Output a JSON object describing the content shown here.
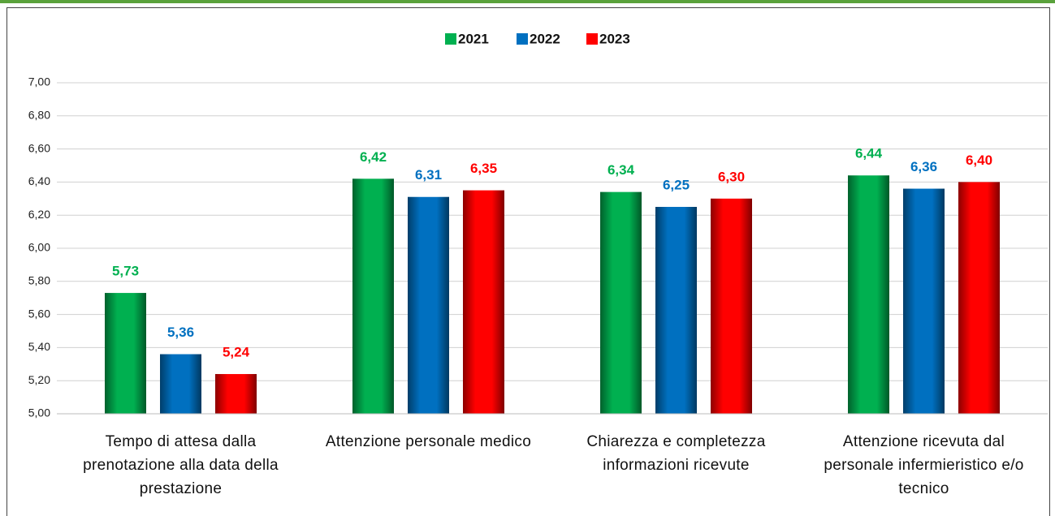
{
  "chart_data": {
    "type": "bar",
    "categories": [
      "Tempo di attesa dalla prenotazione alla data della prestazione",
      "Attenzione personale medico",
      "Chiarezza e completezza informazioni ricevute",
      "Attenzione ricevuta dal personale infermieristico e/o tecnico"
    ],
    "series": [
      {
        "name": "2021",
        "color": "#00b050",
        "values": [
          5.73,
          6.42,
          6.34,
          6.44
        ],
        "value_labels": [
          "5,73",
          "6,42",
          "6,34",
          "6,44"
        ]
      },
      {
        "name": "2022",
        "color": "#0070c0",
        "values": [
          5.36,
          6.31,
          6.25,
          6.36
        ],
        "value_labels": [
          "5,36",
          "6,31",
          "6,25",
          "6,36"
        ]
      },
      {
        "name": "2023",
        "color": "#ff0000",
        "values": [
          5.24,
          6.35,
          6.3,
          6.4
        ],
        "value_labels": [
          "5,24",
          "6,35",
          "6,30",
          "6,40"
        ]
      }
    ],
    "ylim": [
      5,
      7
    ],
    "yticks": [
      {
        "value": 5,
        "label": "5,00"
      },
      {
        "value": 5.2,
        "label": "5,20"
      },
      {
        "value": 5.4,
        "label": "5,40"
      },
      {
        "value": 5.6,
        "label": "5,60"
      },
      {
        "value": 5.8,
        "label": "5,80"
      },
      {
        "value": 6,
        "label": "6,00"
      },
      {
        "value": 6.2,
        "label": "6,20"
      },
      {
        "value": 6.4,
        "label": "6,40"
      },
      {
        "value": 6.6,
        "label": "6,60"
      },
      {
        "value": 6.8,
        "label": "6,80"
      },
      {
        "value": 7,
        "label": "7,00"
      }
    ],
    "grid": true,
    "legend": "top"
  }
}
